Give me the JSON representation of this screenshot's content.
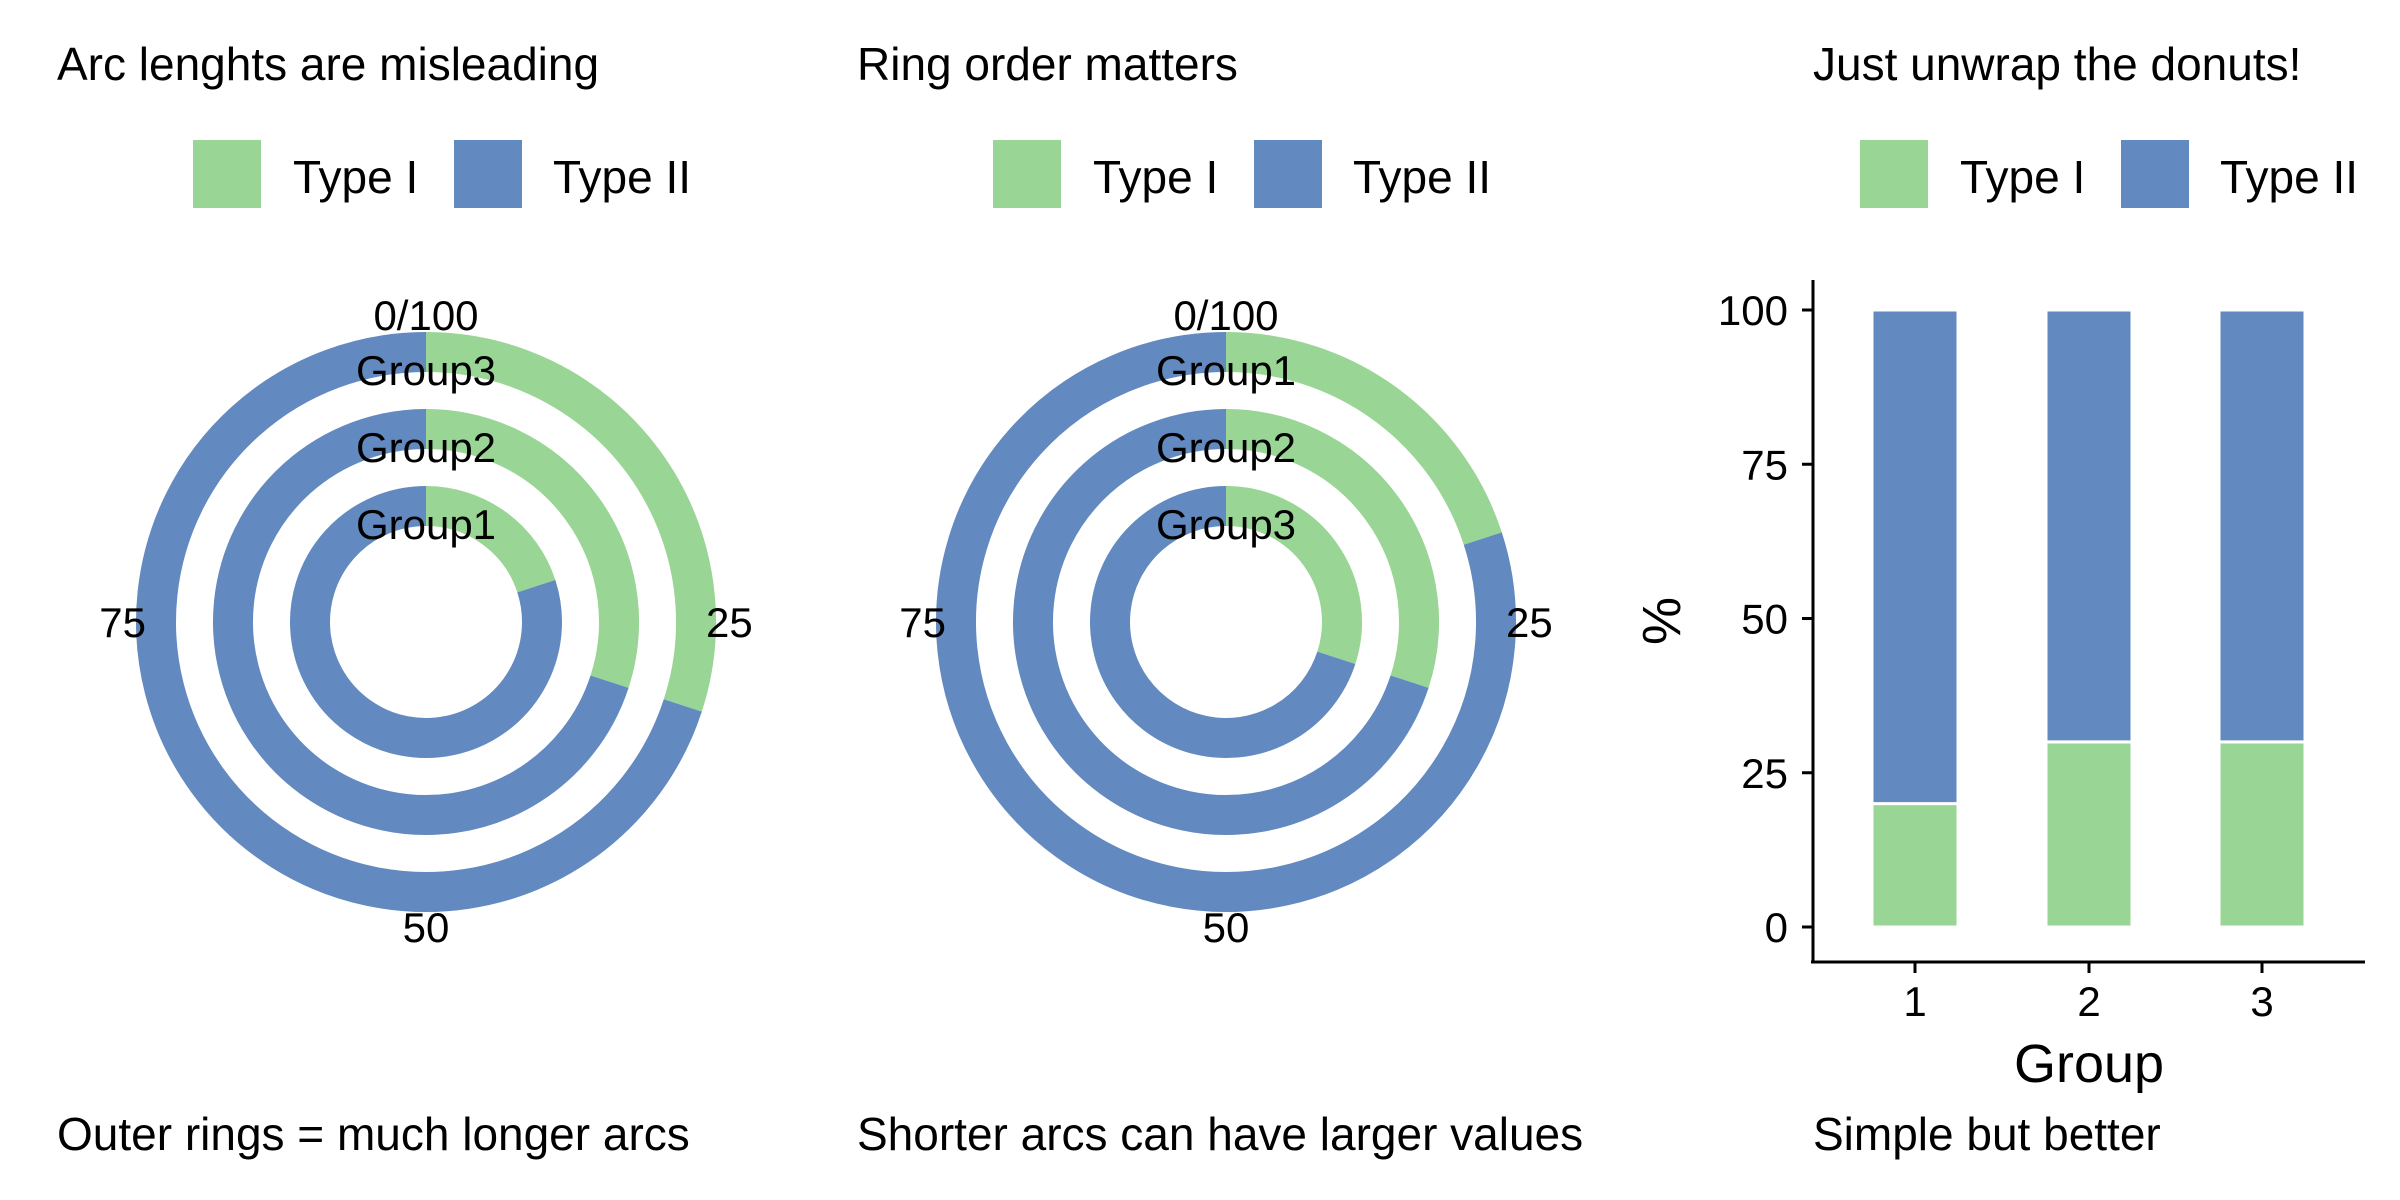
{
  "colors": {
    "type1": "#99d594",
    "type2": "#6289c0",
    "axis": "#000000"
  },
  "chart_data": [
    {
      "type": "donut-rings",
      "title": "Arc lenghts are misleading",
      "caption": "Outer rings = much longer arcs",
      "legend": {
        "placement": "top",
        "items": [
          "Type I",
          "Type II"
        ]
      },
      "rings_inner_to_outer": [
        "Group1",
        "Group2",
        "Group3"
      ],
      "angle_ticks": [
        "0/100",
        "25",
        "50",
        "75"
      ],
      "series": [
        {
          "name": "Type I",
          "values": [
            20,
            30,
            30
          ]
        },
        {
          "name": "Type II",
          "values": [
            80,
            70,
            70
          ]
        }
      ]
    },
    {
      "type": "donut-rings",
      "title": "Ring order matters",
      "caption": "Shorter arcs can have larger values",
      "legend": {
        "placement": "top",
        "items": [
          "Type I",
          "Type II"
        ]
      },
      "rings_inner_to_outer": [
        "Group3",
        "Group2",
        "Group1"
      ],
      "angle_ticks": [
        "0/100",
        "25",
        "50",
        "75"
      ],
      "series": [
        {
          "name": "Type I",
          "values": [
            30,
            30,
            20
          ]
        },
        {
          "name": "Type II",
          "values": [
            70,
            70,
            80
          ]
        }
      ]
    },
    {
      "type": "bar",
      "stacked": true,
      "title": "Just unwrap the donuts!",
      "caption": "Simple but better",
      "legend": {
        "placement": "top",
        "items": [
          "Type I",
          "Type II"
        ]
      },
      "categories": [
        "1",
        "2",
        "3"
      ],
      "xlabel": "Group",
      "ylabel": "%",
      "ylim": [
        0,
        100
      ],
      "yticks": [
        "0",
        "25",
        "50",
        "75",
        "100"
      ],
      "grid": false,
      "series": [
        {
          "name": "Type I",
          "values": [
            20,
            30,
            30
          ]
        },
        {
          "name": "Type II",
          "values": [
            80,
            70,
            70
          ]
        }
      ]
    }
  ]
}
